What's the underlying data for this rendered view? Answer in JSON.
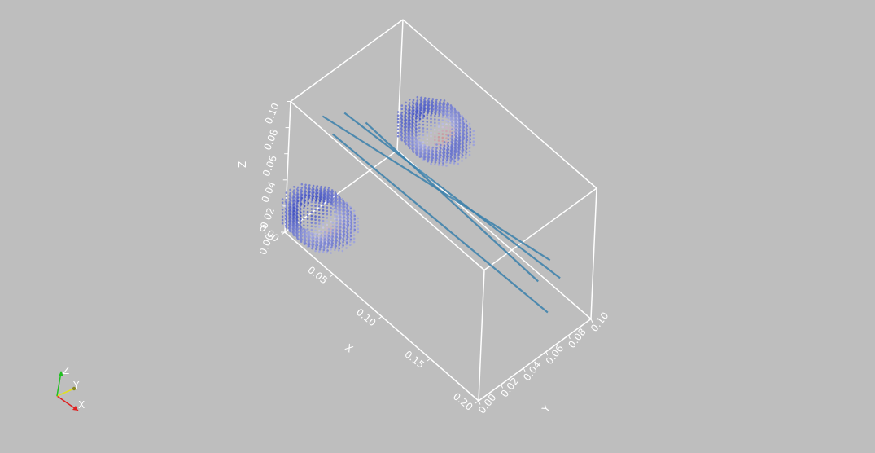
{
  "colors": {
    "background": "#bebebe",
    "box": "#ffffff",
    "line": "#3a80ac",
    "point_cold": "#3b4cc0",
    "point_mid": "#c8c8e8",
    "point_warm": "#d4573e",
    "triad_x": "#e02020",
    "triad_y": "#e0e020",
    "triad_z": "#20c020"
  },
  "chart_data": {
    "type": "scatter",
    "title": "",
    "xlabel": "X",
    "ylabel": "Y",
    "zlabel": "Z",
    "xlim": [
      0,
      0.2
    ],
    "ylim": [
      0,
      0.1
    ],
    "zlim": [
      0,
      0.1
    ],
    "x_ticks": [
      "0.00",
      "0.05",
      "0.10",
      "0.15",
      "0.20"
    ],
    "y_ticks": [
      "0.00",
      "0.02",
      "0.04",
      "0.06",
      "0.08",
      "0.10"
    ],
    "z_ticks": [
      "0.00",
      "0.02",
      "0.04",
      "0.06",
      "0.08",
      "0.10"
    ],
    "point_clouds": [
      {
        "shape": "cylinder-section",
        "x_center": 0.01,
        "y_center": 0.05,
        "z_center": 0.05,
        "radius": 0.035,
        "x_extent": 0.02,
        "colormap": "coolwarm"
      },
      {
        "shape": "cylinder-section",
        "x_center": 0.01,
        "y_center": 0.05,
        "z_center": 0.05,
        "radius": 0.035,
        "x_extent": 0.02,
        "colormap": "coolwarm"
      }
    ],
    "lines": [
      {
        "from": [
          0.0,
          0.03,
          0.07
        ],
        "to": [
          0.2,
          0.06,
          0.07
        ]
      },
      {
        "from": [
          0.0,
          0.05,
          0.06
        ],
        "to": [
          0.2,
          0.07,
          0.05
        ]
      },
      {
        "from": [
          0.0,
          0.04,
          0.05
        ],
        "to": [
          0.2,
          0.06,
          0.03
        ]
      },
      {
        "from": [
          0.0,
          0.07,
          0.04
        ],
        "to": [
          0.2,
          0.05,
          0.06
        ]
      }
    ]
  },
  "triad": {
    "x_label": "X",
    "y_label": "Y",
    "z_label": "Z"
  }
}
